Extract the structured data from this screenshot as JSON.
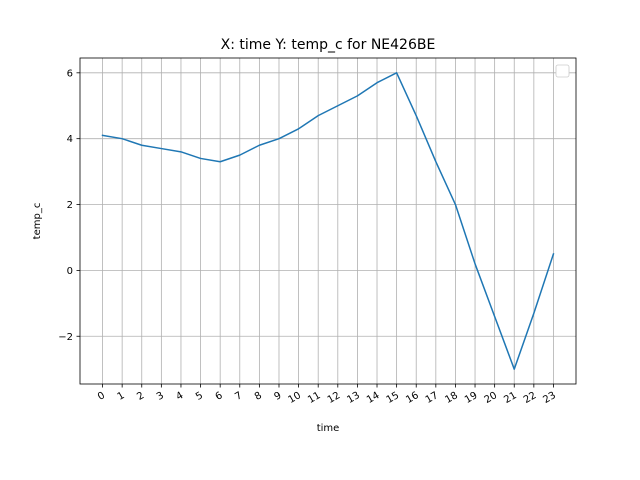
{
  "chart_data": {
    "type": "line",
    "title": "X: time Y: temp_c for NE426BE",
    "xlabel": "time",
    "ylabel": "temp_c",
    "x": [
      "0",
      "1",
      "2",
      "3",
      "4",
      "5",
      "6",
      "7",
      "8",
      "9",
      "10",
      "11",
      "12",
      "13",
      "14",
      "15",
      "16",
      "17",
      "18",
      "19",
      "20",
      "21",
      "22",
      "23"
    ],
    "series": [
      {
        "values": [
          4.1,
          4.0,
          3.8,
          3.7,
          3.6,
          3.4,
          3.3,
          3.5,
          3.8,
          4.0,
          4.3,
          4.7,
          5.0,
          5.3,
          5.7,
          6.0,
          4.7,
          3.3,
          2.0,
          0.2,
          -1.4,
          -3.0,
          -1.3,
          0.5
        ],
        "color": "#1f77b4"
      }
    ],
    "yticks": [
      "6",
      "4",
      "2",
      "0",
      "−2"
    ],
    "ylim": [
      -3.45,
      6.45
    ],
    "grid": true,
    "legend": "top-right",
    "colors": {
      "grid": "#b0b0b0",
      "axes": "#000000"
    }
  }
}
